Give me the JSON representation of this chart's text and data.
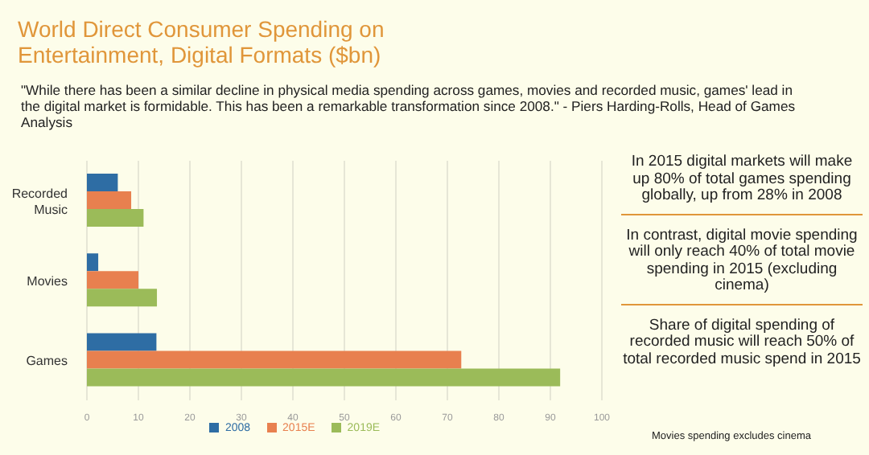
{
  "chart_data": {
    "type": "bar",
    "orientation": "horizontal",
    "title": "World Direct Consumer Spending on Entertainment, Digital Formats ($bn)",
    "subtitle": "\"While there has been a similar decline in physical media spending across games, movies and recorded music, games' lead in the digital market is formidable. This has been a remarkable transformation since 2008.\" - Piers Harding-Rolls, Head of Games Analysis",
    "categories": [
      "Recorded Music",
      "Movies",
      "Games"
    ],
    "series": [
      {
        "name": "2008",
        "color": "#2e6da4",
        "values": [
          6.0,
          2.2,
          13.5
        ]
      },
      {
        "name": "2015E",
        "color": "#e8804f",
        "values": [
          8.6,
          10.0,
          72.7
        ]
      },
      {
        "name": "2019E",
        "color": "#9bbb59",
        "values": [
          11.0,
          13.6,
          91.9
        ]
      }
    ],
    "xlim": [
      0,
      100
    ],
    "xticks": [
      0,
      10,
      20,
      30,
      40,
      50,
      60,
      70,
      80,
      90,
      100
    ],
    "grid": "x",
    "legend": "bottom",
    "annotations": [
      "In 2015 digital markets will make up 80% of total games spending globally, up from 28% in 2008",
      "In contrast, digital movie spending will only reach 40% of total movie spending in 2015 (excluding cinema)",
      "Share of digital spending of recorded music will reach 50% of total recorded music spend in 2015",
      "Movies spending excludes cinema"
    ]
  }
}
